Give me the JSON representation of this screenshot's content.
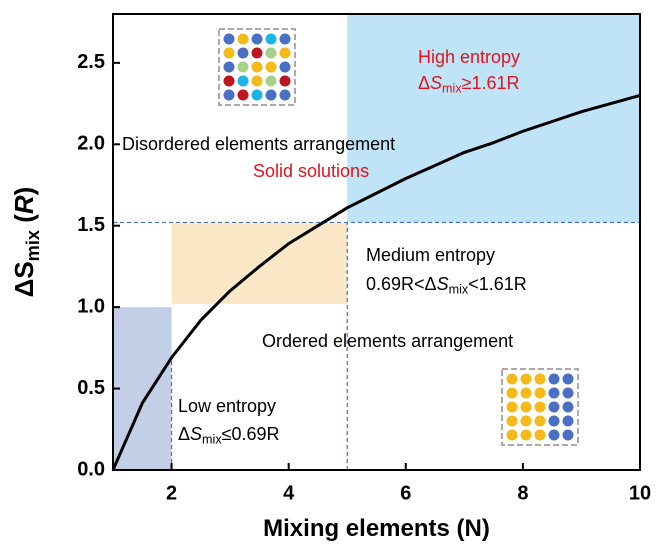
{
  "chart_data": {
    "type": "line",
    "x_label": [
      {
        "text": "Mixing elements (N)"
      }
    ],
    "y_label": [
      {
        "text": "ΔS"
      },
      {
        "text": "mix",
        "sub": true
      },
      {
        "text": " ("
      },
      {
        "text": "R",
        "italic": true
      },
      {
        "text": ")"
      }
    ],
    "x": [
      1,
      1.5,
      2,
      2.5,
      3,
      3.5,
      4,
      4.5,
      5,
      5.5,
      6,
      6.5,
      7,
      7.5,
      8,
      8.5,
      9,
      9.5,
      10
    ],
    "series": [
      {
        "color": "#000000",
        "values": [
          0,
          0.41,
          0.69,
          0.92,
          1.1,
          1.25,
          1.39,
          1.5,
          1.61,
          1.7,
          1.79,
          1.87,
          1.95,
          2.01,
          2.08,
          2.14,
          2.2,
          2.25,
          2.3
        ]
      }
    ],
    "xlim": [
      1,
      10
    ],
    "xticks": [
      2,
      4,
      6,
      8,
      10
    ],
    "ylim": [
      0,
      2.8
    ],
    "yticks": [
      {
        "value": 0,
        "label": "0.0"
      },
      0.5,
      {
        "value": 1,
        "label": "1.0"
      },
      1.5,
      {
        "value": 2,
        "label": "2.0"
      },
      2.5
    ],
    "regions": [
      {
        "x": [
          1,
          2
        ],
        "y": [
          0,
          1.0
        ],
        "color": "#c3cfe6"
      },
      {
        "x": [
          2,
          5
        ],
        "y": [
          1.02,
          1.52
        ],
        "color": "#f9e7c5"
      },
      {
        "x": [
          5,
          10
        ],
        "y": [
          1.52,
          2.8
        ],
        "color": "#bfe3f7"
      }
    ],
    "reference_lines": [
      {
        "x": [
          2,
          2
        ],
        "y": [
          0,
          0.69
        ],
        "color": "#4472c4"
      },
      {
        "x": [
          1,
          10
        ],
        "y": [
          1.52,
          1.52
        ],
        "color": "#4472c4"
      },
      {
        "x": [
          5,
          5
        ],
        "y": [
          0,
          1.52
        ],
        "color": "#4472c4"
      }
    ],
    "annotations": [
      {
        "color": "#e0141e",
        "segments": [
          {
            "text": "High entropy"
          }
        ]
      },
      {
        "color": "#e0141e",
        "segments": [
          {
            "text": "Δ"
          },
          {
            "text": "S",
            "italic": true
          },
          {
            "text": "mix",
            "sub": true
          },
          {
            "text": "≥1.61R"
          }
        ]
      },
      {
        "color": "#000000",
        "segments": [
          {
            "text": "Disordered elements arrangement"
          }
        ]
      },
      {
        "color": "#e0141e",
        "segments": [
          {
            "text": "Solid solutions"
          }
        ]
      },
      {
        "color": "#000000",
        "segments": [
          {
            "text": "Medium entropy"
          }
        ]
      },
      {
        "color": "#000000",
        "segments": [
          {
            "text": "0.69R<Δ"
          },
          {
            "text": "S",
            "italic": true
          },
          {
            "text": "mix",
            "sub": true
          },
          {
            "text": "<1.61R"
          }
        ]
      },
      {
        "color": "#000000",
        "segments": [
          {
            "text": "Ordered elements arrangement"
          }
        ]
      },
      {
        "color": "#000000",
        "segments": [
          {
            "text": "Low entropy"
          }
        ]
      },
      {
        "color": "#000000",
        "segments": [
          {
            "text": "Δ"
          },
          {
            "text": "S",
            "italic": true
          },
          {
            "text": "mix",
            "sub": true
          },
          {
            "text": "≤0.69R"
          }
        ]
      }
    ]
  }
}
